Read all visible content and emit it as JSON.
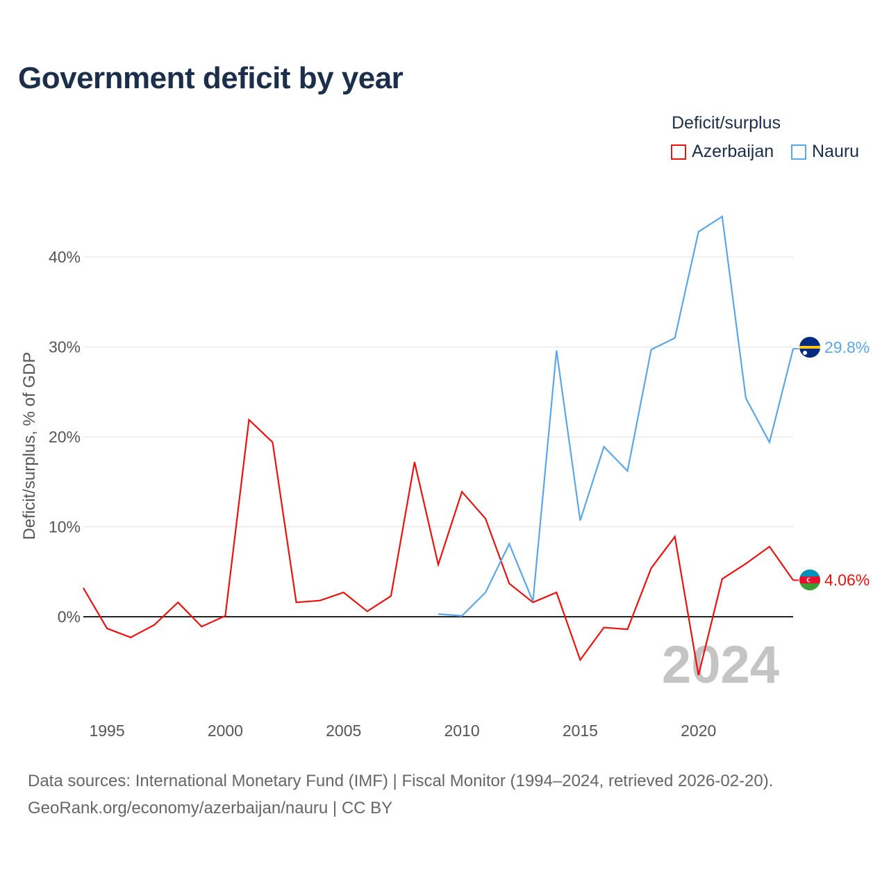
{
  "title": "Government deficit by year",
  "legend": {
    "title": "Deficit/surplus",
    "items": [
      {
        "name": "Azerbaijan",
        "color": "#e8130f"
      },
      {
        "name": "Nauru",
        "color": "#5ca6e6"
      }
    ]
  },
  "footer": {
    "line1": "Data sources: International Monetary Fund (IMF) | Fiscal Monitor (1994–2024, retrieved 2026-02-20).",
    "line2": "GeoRank.org/economy/azerbaijan/nauru | CC BY"
  },
  "chart_data": {
    "type": "line",
    "title": "Government deficit by year",
    "xlabel": "",
    "ylabel": "Deficit/surplus, % of GDP",
    "xlim": [
      1994,
      2024
    ],
    "ylim": [
      -10,
      45
    ],
    "x_ticks": [
      1995,
      2000,
      2005,
      2010,
      2015,
      2020
    ],
    "y_ticks": [
      0,
      10,
      20,
      30,
      40
    ],
    "y_tick_labels": [
      "0%",
      "10%",
      "20%",
      "30%",
      "40%"
    ],
    "grid": true,
    "watermark_year": "2024",
    "series": [
      {
        "name": "Azerbaijan",
        "color": "#e8130f",
        "end_label": "4.06%",
        "end_value": 4.06,
        "x": [
          1994,
          1995,
          1996,
          1997,
          1998,
          1999,
          2000,
          2001,
          2002,
          2003,
          2004,
          2005,
          2006,
          2007,
          2008,
          2009,
          2010,
          2011,
          2012,
          2013,
          2014,
          2015,
          2016,
          2017,
          2018,
          2019,
          2020,
          2021,
          2022,
          2023,
          2024
        ],
        "values": [
          3.2,
          -1.3,
          -2.3,
          -0.9,
          1.6,
          -1.1,
          0.1,
          21.9,
          19.4,
          1.6,
          1.8,
          2.7,
          0.6,
          2.3,
          17.2,
          5.8,
          13.9,
          10.9,
          3.7,
          1.6,
          2.7,
          -4.8,
          -1.2,
          -1.4,
          5.4,
          8.9,
          -6.5,
          4.2,
          5.9,
          7.8,
          4.06
        ]
      },
      {
        "name": "Nauru",
        "color": "#5ca6e6",
        "end_label": "29.8%",
        "end_value": 29.8,
        "x": [
          2009,
          2010,
          2011,
          2012,
          2013,
          2014,
          2015,
          2016,
          2017,
          2018,
          2019,
          2020,
          2021,
          2022,
          2023,
          2024
        ],
        "values": [
          0.3,
          0.1,
          2.7,
          8.1,
          1.7,
          29.6,
          10.7,
          18.9,
          16.2,
          29.7,
          31.0,
          42.8,
          44.5,
          24.3,
          19.4,
          29.8
        ]
      }
    ]
  }
}
